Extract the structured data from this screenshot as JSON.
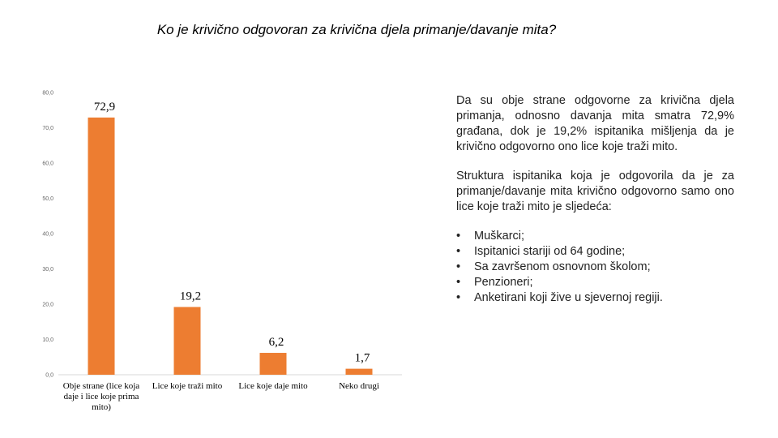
{
  "title": "Ko je krivično odgovoran za krivična djela primanje/davanje mita?",
  "chart_data": {
    "type": "bar",
    "categories": [
      "Obje strane (lice koja daje i lice koje prima mito)",
      "Lice koje traži mito",
      "Lice koje daje mito",
      "Neko drugi"
    ],
    "values": [
      72.9,
      19.2,
      6.2,
      1.7
    ],
    "value_labels": [
      "72,9",
      "19,2",
      "6,2",
      "1,7"
    ],
    "ylim": [
      0,
      80
    ],
    "yticks": [
      "0,0",
      "10,0",
      "20,0",
      "30,0",
      "40,0",
      "50,0",
      "60,0",
      "70,0",
      "80,0"
    ],
    "bar_color": "#ED7D31",
    "grid": false,
    "legend": "none"
  },
  "text": {
    "paragraph1": "Da su obje strane odgovorne za krivična djela primanja, odnosno davanja mita smatra 72,9% građana, dok je 19,2% ispitanika mišljenja da je krivično odgovorno ono lice koje traži mito.",
    "paragraph2": "Struktura ispitanika koja je odgovorila da je za primanje/davanje mita krivično odgovorno samo ono lice koje traži mito je sljedeća:",
    "bullets": [
      "Muškarci;",
      "Ispitanici stariji od 64 godine;",
      "Sa završenom osnovnom školom;",
      "Penzioneri;",
      "Anketirani koji žive u sjevernoj regiji."
    ]
  }
}
